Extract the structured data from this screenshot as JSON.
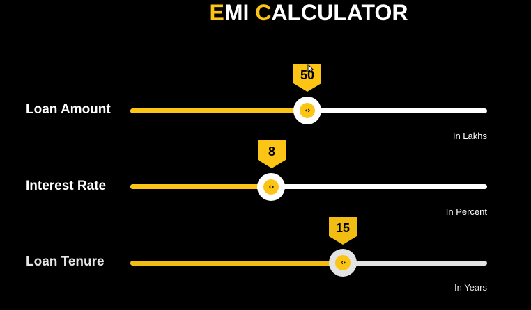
{
  "header": {
    "title_e": "E",
    "title_mi": "MI ",
    "title_c": "C",
    "title_rest": "ALCULATOR"
  },
  "sliders": [
    {
      "label": "Loan Amount",
      "value": "50",
      "unit": "In Lakhs",
      "fraction": 0.496
    },
    {
      "label": "Interest Rate",
      "value": "8",
      "unit": "In Percent",
      "fraction": 0.396
    },
    {
      "label": "Loan Tenure",
      "value": "15",
      "unit": "In Years",
      "fraction": 0.596
    }
  ],
  "icons": {
    "thumb": "chevrons-left-right-icon",
    "cursor": "mouse-pointer-icon"
  },
  "colors": {
    "accent": "#fcc515",
    "background": "#000000",
    "track": "#ffffff"
  }
}
